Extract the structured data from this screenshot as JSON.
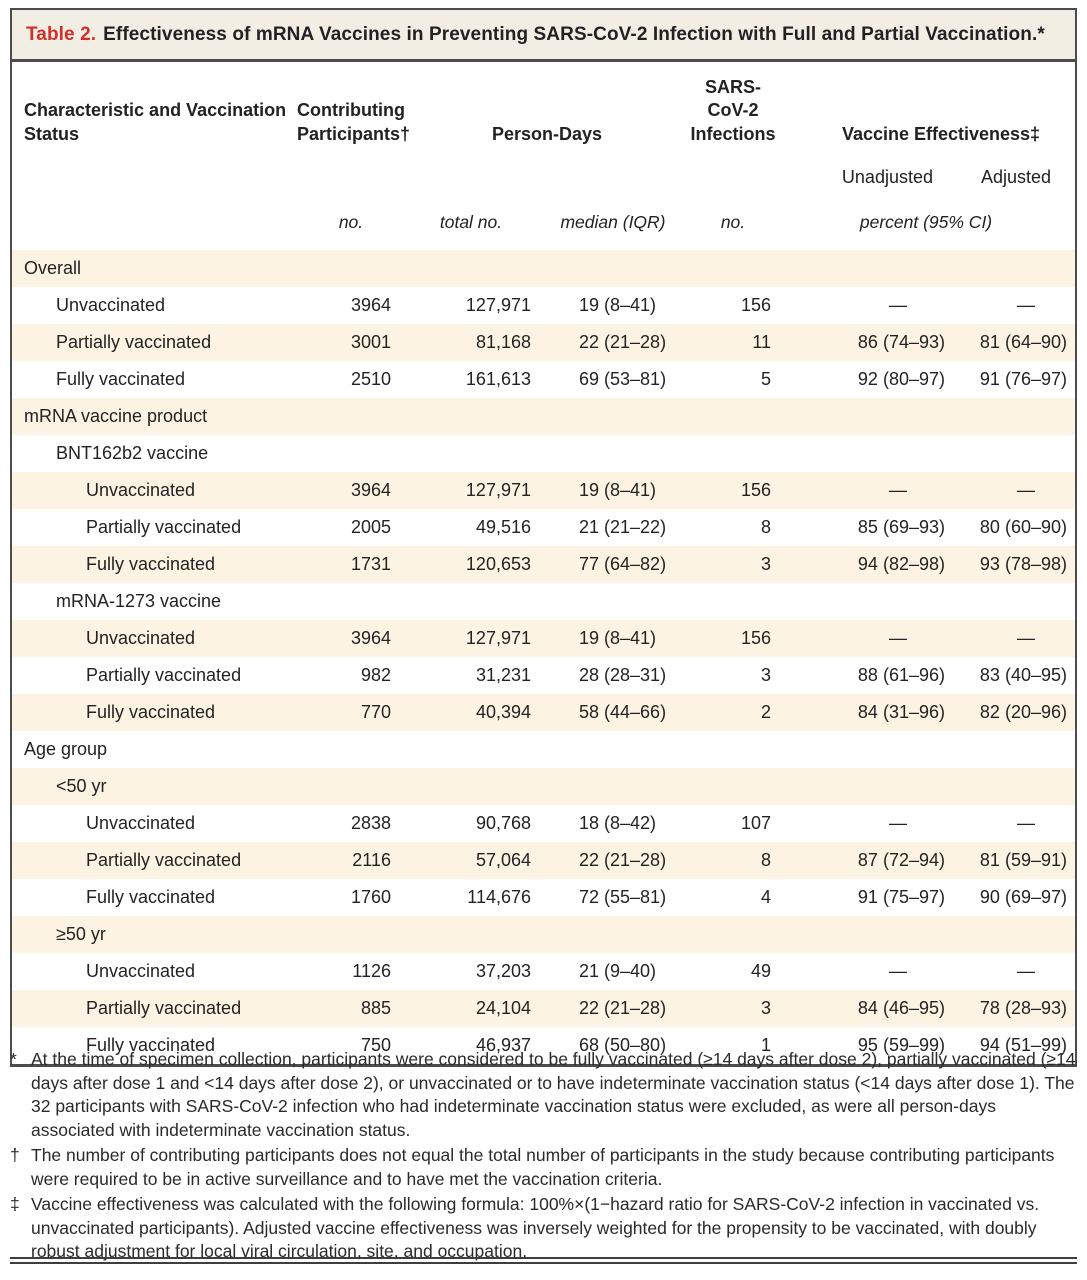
{
  "colors": {
    "accent_red": "#d22e2b",
    "stripe_cream": "#fdf3e2",
    "title_bar_bg": "#f2eee3",
    "border_dark": "#4c4c4e"
  },
  "table": {
    "title_label": "Table 2.",
    "title_text": "Effectiveness of mRNA Vaccines in Preventing SARS-CoV-2 Infection with Full and Partial Vaccination.*",
    "headers": {
      "characteristic": "Characteristic and Vaccination Status",
      "participants": "Contributing Participants†",
      "person_days": "Person-Days",
      "infections": "SARS-CoV-2 Infections",
      "effectiveness": "Vaccine Effectiveness‡",
      "unadjusted": "Unadjusted",
      "adjusted": "Adjusted"
    },
    "units": {
      "participants": "no.",
      "person_days_total": "total no.",
      "person_days_median": "median (IQR)",
      "infections": "no.",
      "effectiveness": "percent (95% CI)"
    },
    "rows": [
      {
        "label": "Overall",
        "indent": 0,
        "participants": "",
        "person_days_total": "",
        "person_days_median": "",
        "infections": "",
        "ve_unadjusted": "",
        "ve_adjusted": ""
      },
      {
        "label": "Unvaccinated",
        "indent": 1,
        "participants": "3964",
        "person_days_total": "127,971",
        "person_days_median": "19 (8–41)",
        "infections": "156",
        "ve_unadjusted": "—",
        "ve_adjusted": "—"
      },
      {
        "label": "Partially vaccinated",
        "indent": 1,
        "participants": "3001",
        "person_days_total": "81,168",
        "person_days_median": "22 (21–28)",
        "infections": "11",
        "ve_unadjusted": "86 (74–93)",
        "ve_adjusted": "81 (64–90)"
      },
      {
        "label": "Fully vaccinated",
        "indent": 1,
        "participants": "2510",
        "person_days_total": "161,613",
        "person_days_median": "69 (53–81)",
        "infections": "5",
        "ve_unadjusted": "92 (80–97)",
        "ve_adjusted": "91 (76–97)"
      },
      {
        "label": "mRNA vaccine product",
        "indent": 0,
        "participants": "",
        "person_days_total": "",
        "person_days_median": "",
        "infections": "",
        "ve_unadjusted": "",
        "ve_adjusted": ""
      },
      {
        "label": "BNT162b2 vaccine",
        "indent": 1,
        "participants": "",
        "person_days_total": "",
        "person_days_median": "",
        "infections": "",
        "ve_unadjusted": "",
        "ve_adjusted": ""
      },
      {
        "label": "Unvaccinated",
        "indent": 2,
        "participants": "3964",
        "person_days_total": "127,971",
        "person_days_median": "19 (8–41)",
        "infections": "156",
        "ve_unadjusted": "—",
        "ve_adjusted": "—"
      },
      {
        "label": "Partially vaccinated",
        "indent": 2,
        "participants": "2005",
        "person_days_total": "49,516",
        "person_days_median": "21 (21–22)",
        "infections": "8",
        "ve_unadjusted": "85 (69–93)",
        "ve_adjusted": "80 (60–90)"
      },
      {
        "label": "Fully vaccinated",
        "indent": 2,
        "participants": "1731",
        "person_days_total": "120,653",
        "person_days_median": "77 (64–82)",
        "infections": "3",
        "ve_unadjusted": "94 (82–98)",
        "ve_adjusted": "93 (78–98)"
      },
      {
        "label": "mRNA-1273 vaccine",
        "indent": 1,
        "participants": "",
        "person_days_total": "",
        "person_days_median": "",
        "infections": "",
        "ve_unadjusted": "",
        "ve_adjusted": ""
      },
      {
        "label": "Unvaccinated",
        "indent": 2,
        "participants": "3964",
        "person_days_total": "127,971",
        "person_days_median": "19 (8–41)",
        "infections": "156",
        "ve_unadjusted": "—",
        "ve_adjusted": "—"
      },
      {
        "label": "Partially vaccinated",
        "indent": 2,
        "participants": "982",
        "person_days_total": "31,231",
        "person_days_median": "28 (28–31)",
        "infections": "3",
        "ve_unadjusted": "88 (61–96)",
        "ve_adjusted": "83 (40–95)"
      },
      {
        "label": "Fully vaccinated",
        "indent": 2,
        "participants": "770",
        "person_days_total": "40,394",
        "person_days_median": "58 (44–66)",
        "infections": "2",
        "ve_unadjusted": "84 (31–96)",
        "ve_adjusted": "82 (20–96)"
      },
      {
        "label": "Age group",
        "indent": 0,
        "participants": "",
        "person_days_total": "",
        "person_days_median": "",
        "infections": "",
        "ve_unadjusted": "",
        "ve_adjusted": ""
      },
      {
        "label": "<50 yr",
        "indent": 1,
        "participants": "",
        "person_days_total": "",
        "person_days_median": "",
        "infections": "",
        "ve_unadjusted": "",
        "ve_adjusted": ""
      },
      {
        "label": "Unvaccinated",
        "indent": 2,
        "participants": "2838",
        "person_days_total": "90,768",
        "person_days_median": "18 (8–42)",
        "infections": "107",
        "ve_unadjusted": "—",
        "ve_adjusted": "—"
      },
      {
        "label": "Partially vaccinated",
        "indent": 2,
        "participants": "2116",
        "person_days_total": "57,064",
        "person_days_median": "22 (21–28)",
        "infections": "8",
        "ve_unadjusted": "87 (72–94)",
        "ve_adjusted": "81 (59–91)"
      },
      {
        "label": "Fully vaccinated",
        "indent": 2,
        "participants": "1760",
        "person_days_total": "114,676",
        "person_days_median": "72 (55–81)",
        "infections": "4",
        "ve_unadjusted": "91 (75–97)",
        "ve_adjusted": "90 (69–97)"
      },
      {
        "label": "≥50 yr",
        "indent": 1,
        "participants": "",
        "person_days_total": "",
        "person_days_median": "",
        "infections": "",
        "ve_unadjusted": "",
        "ve_adjusted": ""
      },
      {
        "label": "Unvaccinated",
        "indent": 2,
        "participants": "1126",
        "person_days_total": "37,203",
        "person_days_median": "21 (9–40)",
        "infections": "49",
        "ve_unadjusted": "—",
        "ve_adjusted": "—"
      },
      {
        "label": "Partially vaccinated",
        "indent": 2,
        "participants": "885",
        "person_days_total": "24,104",
        "person_days_median": "22 (21–28)",
        "infections": "3",
        "ve_unadjusted": "84 (46–95)",
        "ve_adjusted": "78 (28–93)"
      },
      {
        "label": "Fully vaccinated",
        "indent": 2,
        "participants": "750",
        "person_days_total": "46,937",
        "person_days_median": "68 (50–80)",
        "infections": "1",
        "ve_unadjusted": "95 (59–99)",
        "ve_adjusted": "94 (51–99)"
      }
    ]
  },
  "footnotes": [
    {
      "marker": "*",
      "text": "At the time of specimen collection, participants were considered to be fully vaccinated (≥14 days after dose 2), partially vaccinated (≥14 days after dose 1 and <14 days after dose 2), or unvaccinated or to have indeterminate vaccination status (<14 days after dose 1). The 32 participants with SARS-CoV-2 infection who had indeterminate vaccination status were excluded, as were all person-days associated with indeterminate vaccination status."
    },
    {
      "marker": "†",
      "text": "The number of contributing participants does not equal the total number of participants in the study because contributing participants were required to be in active surveillance and to have met the vaccination criteria."
    },
    {
      "marker": "‡",
      "text": "Vaccine effectiveness was calculated with the following formula: 100%×(1−hazard ratio for SARS-CoV-2 infection in vaccinated vs. unvaccinated participants). Adjusted vaccine effectiveness was inversely weighted for the propensity to be vaccinated, with doubly robust adjustment for local viral circulation, site, and occupation."
    }
  ]
}
